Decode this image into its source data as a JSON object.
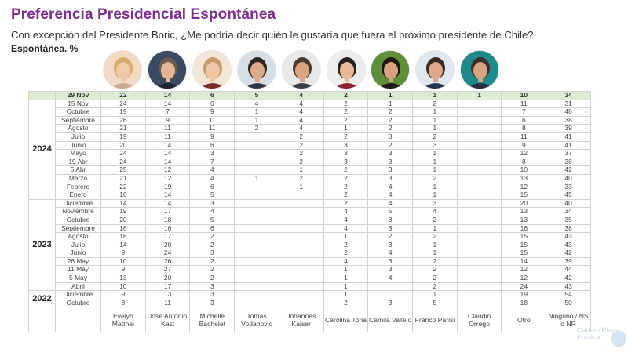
{
  "title": "Preferencia Presidencial Espontánea",
  "subtitle": "Con excepción del Presidente Boric, ¿Me podría decir quién le gustaría que fuera el próximo presidente de Chile?",
  "note": "Espontánea. %",
  "watermark": "Cadem Plaza Pública",
  "chart_data": {
    "type": "table",
    "header_date": "29 Nov",
    "header_values": [
      "22",
      "14",
      "6",
      "5",
      "4",
      "2",
      "1",
      "1",
      "1",
      "10",
      "34"
    ],
    "columns": [
      "Evelyn Matthei",
      "José Antonio Kast",
      "Michelle Bachelet",
      "Tomás Vodanovic",
      "Johannes Kaiser",
      "Carolina Tohá",
      "Camila Vallejo",
      "Franco Parisi",
      "Claudio Orrego",
      "Otro",
      "Ninguno / NS o NR"
    ],
    "groups": [
      {
        "year": "2024",
        "rows": [
          {
            "date": "15 Nov",
            "values": [
              "24",
              "14",
              "6",
              "4",
              "4",
              "2",
              "1",
              "2",
              "",
              "11",
              "31"
            ]
          },
          {
            "date": "Octubre",
            "values": [
              "19",
              "7",
              "9",
              "1",
              "4",
              "2",
              "2",
              "1",
              "",
              "7",
              "48"
            ]
          },
          {
            "date": "Septiembre",
            "values": [
              "26",
              "9",
              "11",
              "1",
              "4",
              "2",
              "2",
              "1",
              "",
              "6",
              "38"
            ]
          },
          {
            "date": "Agosto",
            "values": [
              "21",
              "11",
              "11",
              "2",
              "4",
              "1",
              "2",
              "1",
              "",
              "8",
              "39"
            ]
          },
          {
            "date": "Julio",
            "values": [
              "19",
              "11",
              "9",
              "",
              "2",
              "2",
              "3",
              "2",
              "",
              "11",
              "41"
            ]
          },
          {
            "date": "Junio",
            "values": [
              "20",
              "14",
              "6",
              "",
              "2",
              "3",
              "2",
              "3",
              "",
              "9",
              "41"
            ]
          },
          {
            "date": "Mayo",
            "values": [
              "24",
              "14",
              "3",
              "",
              "2",
              "3",
              "3",
              "1",
              "",
              "12",
              "37"
            ]
          },
          {
            "date": "19 Abr",
            "values": [
              "24",
              "14",
              "7",
              "",
              "2",
              "3",
              "3",
              "1",
              "",
              "8",
              "38"
            ]
          },
          {
            "date": "5 Abr",
            "values": [
              "25",
              "12",
              "4",
              "",
              "1",
              "2",
              "3",
              "1",
              "",
              "10",
              "42"
            ]
          },
          {
            "date": "Marzo",
            "values": [
              "21",
              "12",
              "4",
              "1",
              "2",
              "2",
              "3",
              "2",
              "",
              "13",
              "40"
            ]
          },
          {
            "date": "Febrero",
            "values": [
              "22",
              "19",
              "6",
              "",
              "1",
              "2",
              "4",
              "1",
              "",
              "12",
              "33"
            ]
          },
          {
            "date": "Enero",
            "values": [
              "16",
              "14",
              "5",
              "",
              "",
              "2",
              "4",
              "1",
              "",
              "15",
              "45"
            ]
          }
        ]
      },
      {
        "year": "2023",
        "rows": [
          {
            "date": "Diciembre",
            "values": [
              "14",
              "14",
              "3",
              "",
              "",
              "2",
              "4",
              "3",
              "",
              "20",
              "40"
            ]
          },
          {
            "date": "Noviembre",
            "values": [
              "19",
              "17",
              "4",
              "",
              "",
              "4",
              "5",
              "4",
              "",
              "13",
              "34"
            ]
          },
          {
            "date": "Octubre",
            "values": [
              "20",
              "18",
              "5",
              "",
              "",
              "4",
              "3",
              "2",
              "",
              "13",
              "35"
            ]
          },
          {
            "date": "Septiembre",
            "values": [
              "16",
              "16",
              "6",
              "",
              "",
              "4",
              "3",
              "1",
              "",
              "16",
              "38"
            ]
          },
          {
            "date": "Agosto",
            "values": [
              "18",
              "17",
              "2",
              "",
              "",
              "1",
              "2",
              "2",
              "",
              "15",
              "43"
            ]
          },
          {
            "date": "Julio",
            "values": [
              "14",
              "20",
              "2",
              "",
              "",
              "2",
              "3",
              "1",
              "",
              "15",
              "43"
            ]
          },
          {
            "date": "Junio",
            "values": [
              "9",
              "24",
              "3",
              "",
              "",
              "2",
              "4",
              "1",
              "",
              "15",
              "42"
            ]
          },
          {
            "date": "26 May",
            "values": [
              "10",
              "26",
              "2",
              "",
              "",
              "4",
              "3",
              "2",
              "",
              "14",
              "39"
            ]
          },
          {
            "date": "11 May",
            "values": [
              "9",
              "27",
              "2",
              "",
              "",
              "1",
              "3",
              "2",
              "",
              "12",
              "44"
            ]
          },
          {
            "date": "5 May",
            "values": [
              "13",
              "20",
              "2",
              "",
              "",
              "1",
              "4",
              "2",
              "",
              "12",
              "42"
            ]
          },
          {
            "date": "Abril",
            "values": [
              "10",
              "17",
              "3",
              "",
              "",
              "1",
              "",
              "2",
              "",
              "24",
              "43"
            ]
          }
        ]
      },
      {
        "year": "2022",
        "rows": [
          {
            "date": "Diciembre",
            "values": [
              "9",
              "13",
              "3",
              "",
              "",
              "1",
              "",
              "1",
              "",
              "19",
              "54"
            ]
          },
          {
            "date": "Octubre",
            "values": [
              "8",
              "11",
              "3",
              "",
              "",
              "2",
              "3",
              "5",
              "",
              "18",
              "50"
            ]
          }
        ]
      }
    ]
  },
  "avatars": [
    {
      "name": "evelyn-matthei-avatar",
      "bg": "#f2d9c4",
      "hair": "#d6ad6c",
      "skin": "#f0c9a8",
      "shirt": "#c9a98e"
    },
    {
      "name": "jose-antonio-kast-avatar",
      "bg": "#3b4a63",
      "hair": "#6d5a4a",
      "skin": "#e3b594",
      "shirt": "#1c2536"
    },
    {
      "name": "michelle-bachelet-avatar",
      "bg": "#f3e6d8",
      "hair": "#c49a68",
      "skin": "#efc6a3",
      "shirt": "#7a2c2c"
    },
    {
      "name": "tomas-vodanovic-avatar",
      "bg": "#d6dde4",
      "hair": "#2b2421",
      "skin": "#dcaa88",
      "shirt": "#2e3640"
    },
    {
      "name": "johannes-kaiser-avatar",
      "bg": "#e8e8e8",
      "hair": "#4a3a2c",
      "skin": "#d9a684",
      "shirt": "#3c3f45"
    },
    {
      "name": "carolina-toha-avatar",
      "bg": "#ededed",
      "hair": "#2a2220",
      "skin": "#e8b998",
      "shirt": "#8a1f2e"
    },
    {
      "name": "camila-vallejo-avatar",
      "bg": "#5f8f3a",
      "hair": "#1f1712",
      "skin": "#d9a27e",
      "shirt": "#1c1c1c"
    },
    {
      "name": "franco-parisi-avatar",
      "bg": "#dfe6ee",
      "hair": "#3a2a20",
      "skin": "#dba989",
      "shirt": "#26344d"
    },
    {
      "name": "claudio-orrego-avatar",
      "bg": "#1f8a8c",
      "hair": "#3c2f26",
      "skin": "#d7a382",
      "shirt": "#2a2f3a"
    }
  ]
}
